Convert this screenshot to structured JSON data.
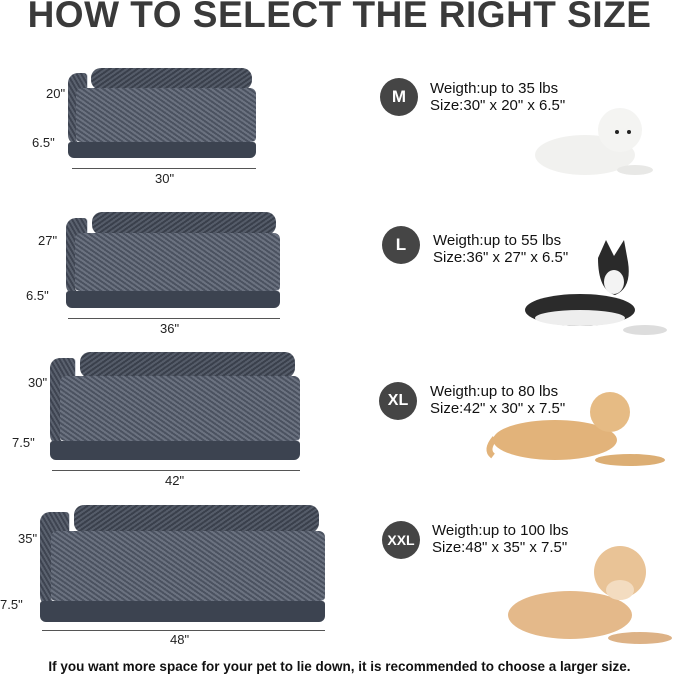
{
  "title": "HOW TO SELECT THE RIGHT SIZE",
  "sizes": [
    {
      "badge": "M",
      "weight": "Weigth:up to 35 lbs",
      "size": "Size:30\" x 20\" x 6.5\"",
      "length": "30\"",
      "depth": "20\"",
      "height": "6.5\"",
      "dog": "white-small-dog"
    },
    {
      "badge": "L",
      "weight": "Weigth:up to 55 lbs",
      "size": "Size:36\" x 27\" x 6.5\"",
      "length": "36\"",
      "depth": "27\"",
      "height": "6.5\"",
      "dog": "husky"
    },
    {
      "badge": "XL",
      "weight": "Weigth:up to 80 lbs",
      "size": "Size:42\" x 30\" x 7.5\"",
      "length": "42\"",
      "depth": "30\"",
      "height": "7.5\"",
      "dog": "golden-retriever-lying"
    },
    {
      "badge": "XXL",
      "weight": "Weigth:up to 100 lbs",
      "size": "Size:48\" x 35\" x 7.5\"",
      "length": "48\"",
      "depth": "35\"",
      "height": "7.5\"",
      "dog": "golden-retriever-large"
    }
  ],
  "footer": "If you want more space for your pet to lie down, it is recommended to choose a larger size.",
  "colors": {
    "badge": "#454545",
    "bed": "#4b5260",
    "title": "#3a3a3a"
  }
}
